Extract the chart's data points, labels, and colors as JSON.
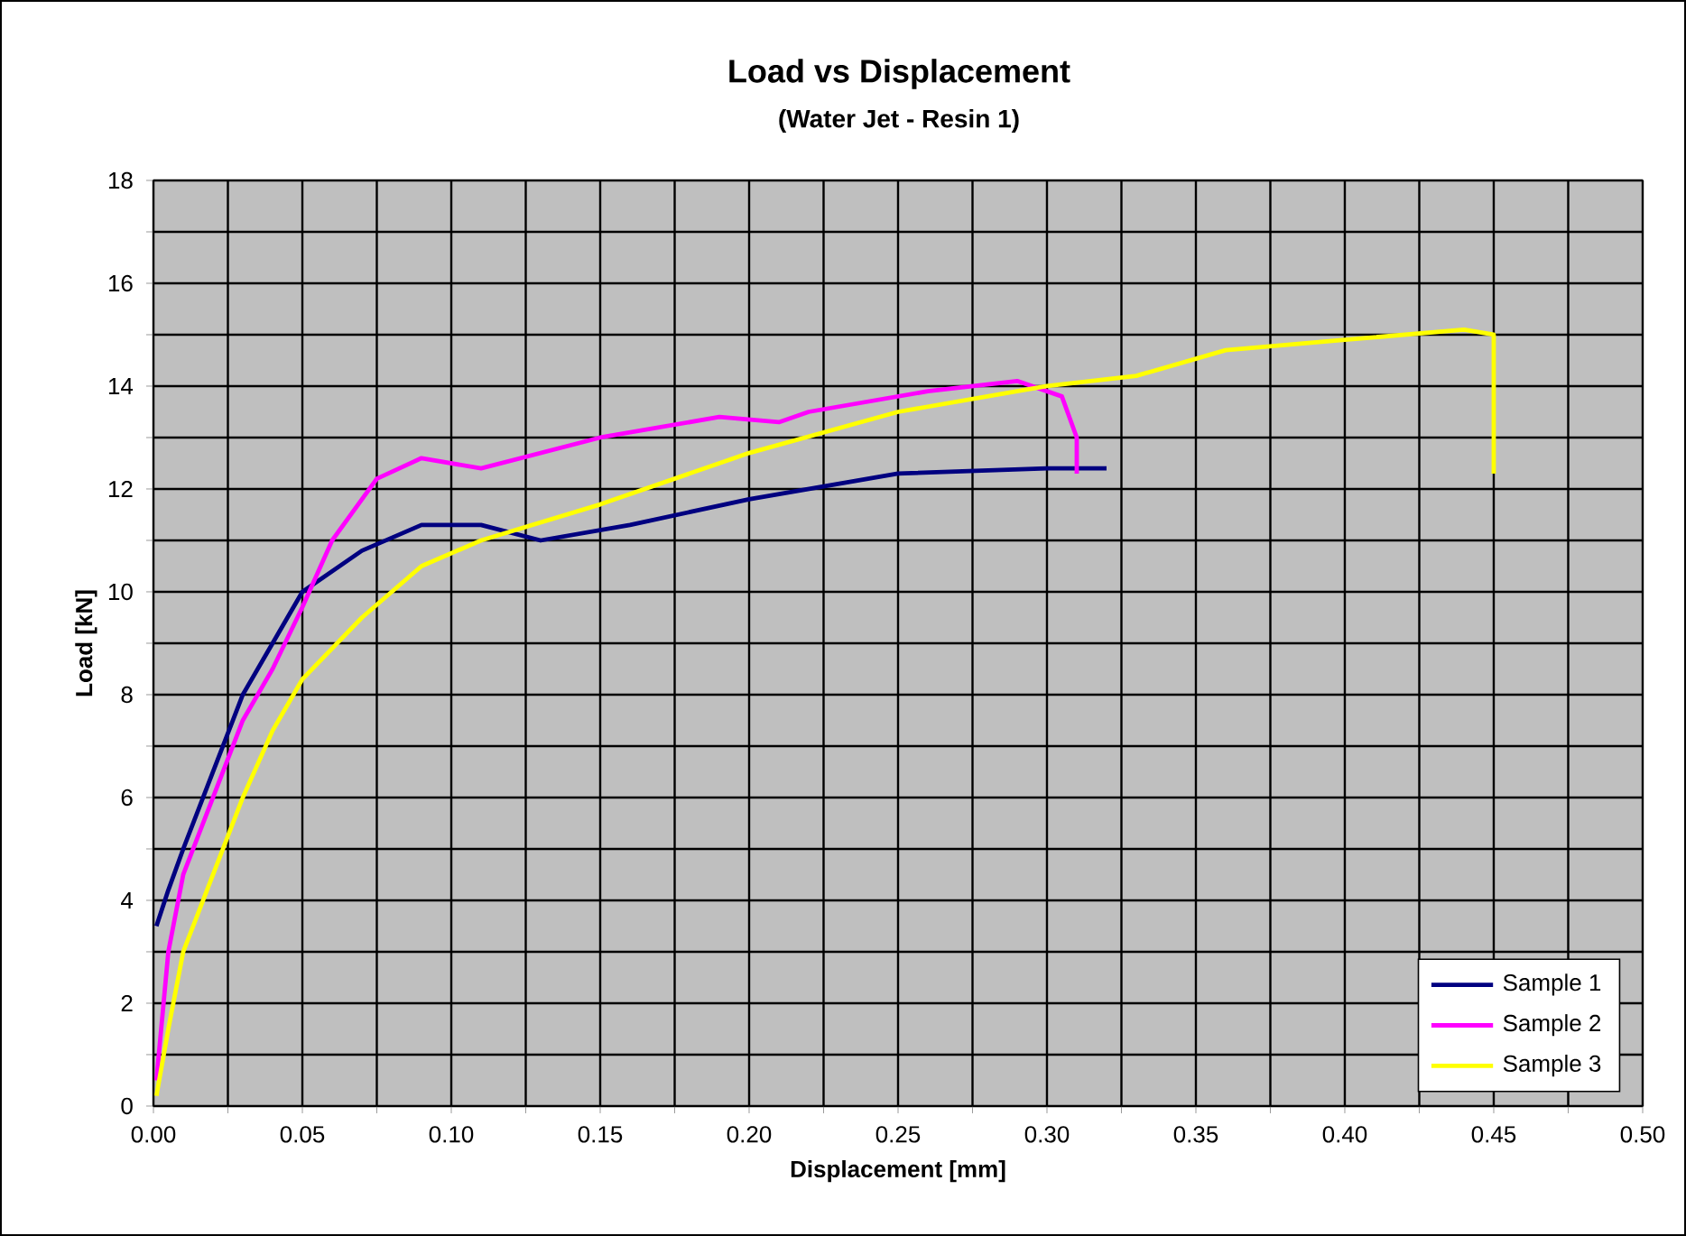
{
  "chart_data": {
    "type": "line",
    "title": "Load vs Displacement",
    "subtitle": "(Water Jet - Resin 1)",
    "xlabel": "Displacement [mm]",
    "ylabel": "Load [kN]",
    "xlim": [
      0,
      0.5
    ],
    "ylim": [
      0,
      18
    ],
    "xticks": [
      {
        "value": 0,
        "label": "0.00"
      },
      {
        "value": 0.025,
        "label": null
      },
      {
        "value": 0.05,
        "label": "0.05"
      },
      {
        "value": 0.075,
        "label": null
      },
      {
        "value": 0.1,
        "label": "0.10"
      },
      {
        "value": 0.125,
        "label": null
      },
      {
        "value": 0.15,
        "label": "0.15"
      },
      {
        "value": 0.175,
        "label": null
      },
      {
        "value": 0.2,
        "label": "0.20"
      },
      {
        "value": 0.225,
        "label": null
      },
      {
        "value": 0.25,
        "label": "0.25"
      },
      {
        "value": 0.275,
        "label": null
      },
      {
        "value": 0.3,
        "label": "0.30"
      },
      {
        "value": 0.325,
        "label": null
      },
      {
        "value": 0.35,
        "label": "0.35"
      },
      {
        "value": 0.375,
        "label": null
      },
      {
        "value": 0.4,
        "label": "0.40"
      },
      {
        "value": 0.425,
        "label": null
      },
      {
        "value": 0.45,
        "label": "0.45"
      },
      {
        "value": 0.475,
        "label": null
      },
      {
        "value": 0.5,
        "label": "0.50"
      }
    ],
    "yticks": [
      0,
      {
        "value": 1,
        "label": null
      },
      2,
      {
        "value": 3,
        "label": null
      },
      4,
      {
        "value": 5,
        "label": null
      },
      6,
      {
        "value": 7,
        "label": null
      },
      8,
      {
        "value": 9,
        "label": null
      },
      10,
      {
        "value": 11,
        "label": null
      },
      12,
      {
        "value": 13,
        "label": null
      },
      14,
      {
        "value": 15,
        "label": null
      },
      16,
      {
        "value": 17,
        "label": null
      },
      18
    ],
    "grid": true,
    "legend": "bottom right",
    "marker": "none",
    "line_style": "solid",
    "series": [
      {
        "name": "Sample 1",
        "color": "#000080",
        "x": [
          0.001,
          0.005,
          0.01,
          0.02,
          0.03,
          0.04,
          0.05,
          0.07,
          0.09,
          0.11,
          0.13,
          0.16,
          0.2,
          0.25,
          0.3,
          0.32
        ],
        "values": [
          3.5,
          4.2,
          5,
          6.5,
          8,
          9,
          10,
          10.8,
          11.3,
          11.3,
          11,
          11.3,
          11.8,
          12.3,
          12.4,
          12.4
        ]
      },
      {
        "name": "Sample 2",
        "color": "#ff00ff",
        "x": [
          0.001,
          0.005,
          0.01,
          0.02,
          0.03,
          0.04,
          0.05,
          0.06,
          0.075,
          0.09,
          0.11,
          0.15,
          0.19,
          0.21,
          0.22,
          0.26,
          0.29,
          0.305,
          0.31,
          0.31
        ],
        "values": [
          0.5,
          3,
          4.5,
          6,
          7.5,
          8.5,
          9.7,
          11,
          12.2,
          12.6,
          12.4,
          13,
          13.4,
          13.3,
          13.5,
          13.9,
          14.1,
          13.8,
          13,
          12.3
        ]
      },
      {
        "name": "Sample 3",
        "color": "#ffff00",
        "x": [
          0.001,
          0.005,
          0.01,
          0.02,
          0.03,
          0.04,
          0.05,
          0.07,
          0.09,
          0.11,
          0.15,
          0.2,
          0.25,
          0.3,
          0.33,
          0.36,
          0.4,
          0.44,
          0.45,
          0.45
        ],
        "values": [
          0.2,
          1.5,
          3,
          4.5,
          6,
          7.3,
          8.3,
          9.5,
          10.5,
          11,
          11.7,
          12.7,
          13.5,
          14,
          14.2,
          14.7,
          14.9,
          15.1,
          15,
          12.3
        ]
      }
    ]
  }
}
